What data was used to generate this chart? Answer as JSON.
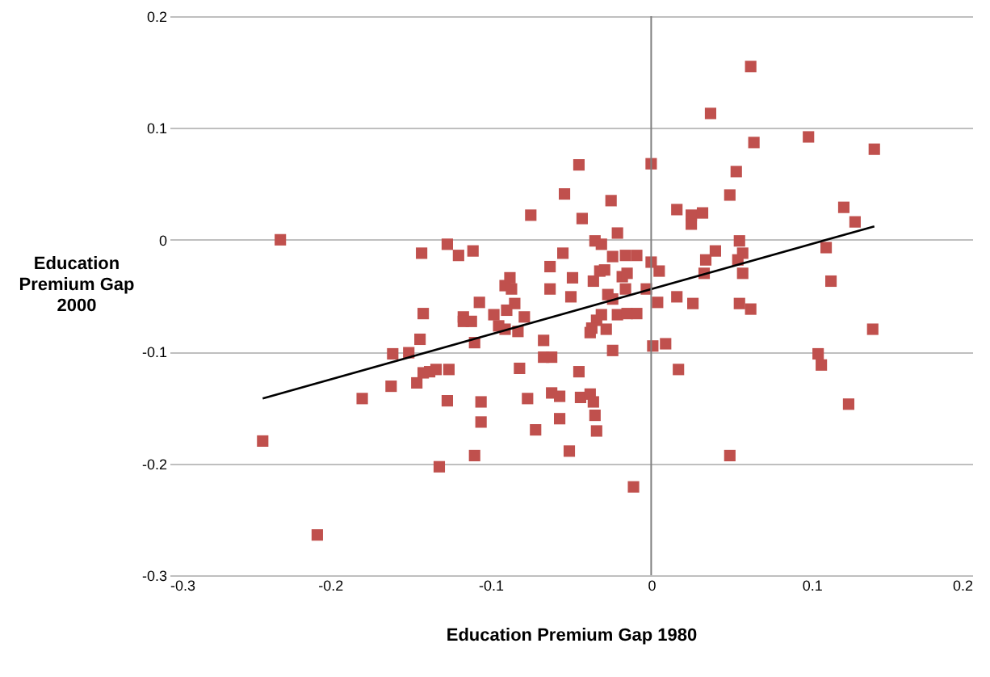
{
  "chart_data": {
    "type": "scatter",
    "xlabel": "Education Premium Gap 1980",
    "ylabel": "Education Premium Gap 2000",
    "xlim": [
      -0.3,
      0.2
    ],
    "xticks": [
      -0.3,
      -0.2,
      -0.1,
      0,
      0.1,
      0.2
    ],
    "ylim": [
      -0.3,
      0.2
    ],
    "yticks": [
      -0.3,
      -0.2,
      -0.1,
      0,
      0.1,
      0.2
    ],
    "grid": "y",
    "marker": "square",
    "ref_lines": [
      {
        "axis": "x",
        "value": 0,
        "color": "#808080"
      }
    ],
    "series": [
      {
        "color": "#c0504d",
        "x": [
          -0.231,
          -0.143,
          -0.142,
          -0.144,
          -0.161,
          -0.151,
          -0.142,
          -0.138,
          -0.162,
          -0.146,
          -0.18,
          -0.242,
          -0.208,
          -0.045,
          0.0,
          -0.054,
          -0.025,
          -0.075,
          -0.043,
          -0.021,
          -0.127,
          -0.12,
          -0.111,
          -0.035,
          -0.031,
          -0.055,
          -0.024,
          -0.016,
          -0.009,
          0.0,
          0.005,
          -0.063,
          -0.029,
          -0.032,
          -0.049,
          -0.018,
          -0.015,
          -0.036,
          -0.088,
          -0.091,
          -0.087,
          -0.063,
          -0.016,
          -0.003,
          0.004,
          -0.027,
          -0.024,
          -0.05,
          -0.107,
          -0.085,
          -0.09,
          -0.098,
          -0.079,
          -0.117,
          -0.117,
          -0.112,
          -0.031,
          -0.021,
          -0.015,
          -0.009,
          -0.034,
          -0.037,
          -0.028,
          -0.038,
          -0.095,
          -0.091,
          -0.083,
          -0.11,
          -0.067,
          -0.067,
          -0.062,
          -0.024,
          0.001,
          -0.134,
          -0.126,
          -0.082,
          -0.045,
          -0.127,
          -0.106,
          -0.077,
          -0.062,
          -0.057,
          -0.044,
          -0.038,
          -0.036,
          -0.106,
          -0.057,
          -0.035,
          -0.072,
          -0.034,
          -0.11,
          -0.051,
          -0.132,
          -0.011,
          0.062,
          0.037,
          0.098,
          0.064,
          0.139,
          0.053,
          0.049,
          0.016,
          0.025,
          0.032,
          0.025,
          0.12,
          0.127,
          0.055,
          0.04,
          0.109,
          0.057,
          0.034,
          0.054,
          0.033,
          0.057,
          0.112,
          0.016,
          0.026,
          0.055,
          0.062,
          0.138,
          0.009,
          0.104,
          0.106,
          0.017,
          0.123,
          0.049
        ],
        "values": [
          0.0,
          -0.012,
          -0.066,
          -0.089,
          -0.102,
          -0.101,
          -0.119,
          -0.118,
          -0.131,
          -0.128,
          -0.142,
          -0.18,
          -0.264,
          0.067,
          0.068,
          0.041,
          0.035,
          0.022,
          0.019,
          0.006,
          -0.004,
          -0.014,
          -0.01,
          -0.001,
          -0.004,
          -0.012,
          -0.015,
          -0.014,
          -0.014,
          -0.02,
          -0.028,
          -0.024,
          -0.027,
          -0.028,
          -0.034,
          -0.033,
          -0.03,
          -0.037,
          -0.034,
          -0.041,
          -0.044,
          -0.044,
          -0.044,
          -0.044,
          -0.056,
          -0.049,
          -0.053,
          -0.051,
          -0.056,
          -0.057,
          -0.063,
          -0.067,
          -0.069,
          -0.069,
          -0.073,
          -0.073,
          -0.067,
          -0.067,
          -0.066,
          -0.066,
          -0.072,
          -0.079,
          -0.08,
          -0.083,
          -0.077,
          -0.08,
          -0.082,
          -0.092,
          -0.09,
          -0.105,
          -0.105,
          -0.099,
          -0.095,
          -0.116,
          -0.116,
          -0.115,
          -0.118,
          -0.144,
          -0.145,
          -0.142,
          -0.137,
          -0.14,
          -0.141,
          -0.138,
          -0.145,
          -0.163,
          -0.16,
          -0.157,
          -0.17,
          -0.171,
          -0.193,
          -0.189,
          -0.203,
          -0.221,
          0.155,
          0.113,
          0.092,
          0.087,
          0.081,
          0.061,
          0.04,
          0.027,
          0.022,
          0.024,
          0.014,
          0.029,
          0.016,
          -0.001,
          -0.01,
          -0.007,
          -0.012,
          -0.018,
          -0.018,
          -0.03,
          -0.03,
          -0.037,
          -0.051,
          -0.057,
          -0.057,
          -0.062,
          -0.08,
          -0.093,
          -0.102,
          -0.112,
          -0.116,
          -0.147,
          -0.193
        ]
      },
      {
        "type": "line",
        "color": "#000000",
        "marker": "none",
        "x": [
          -0.242,
          0.139
        ],
        "values": [
          -0.142,
          0.012
        ]
      }
    ]
  }
}
